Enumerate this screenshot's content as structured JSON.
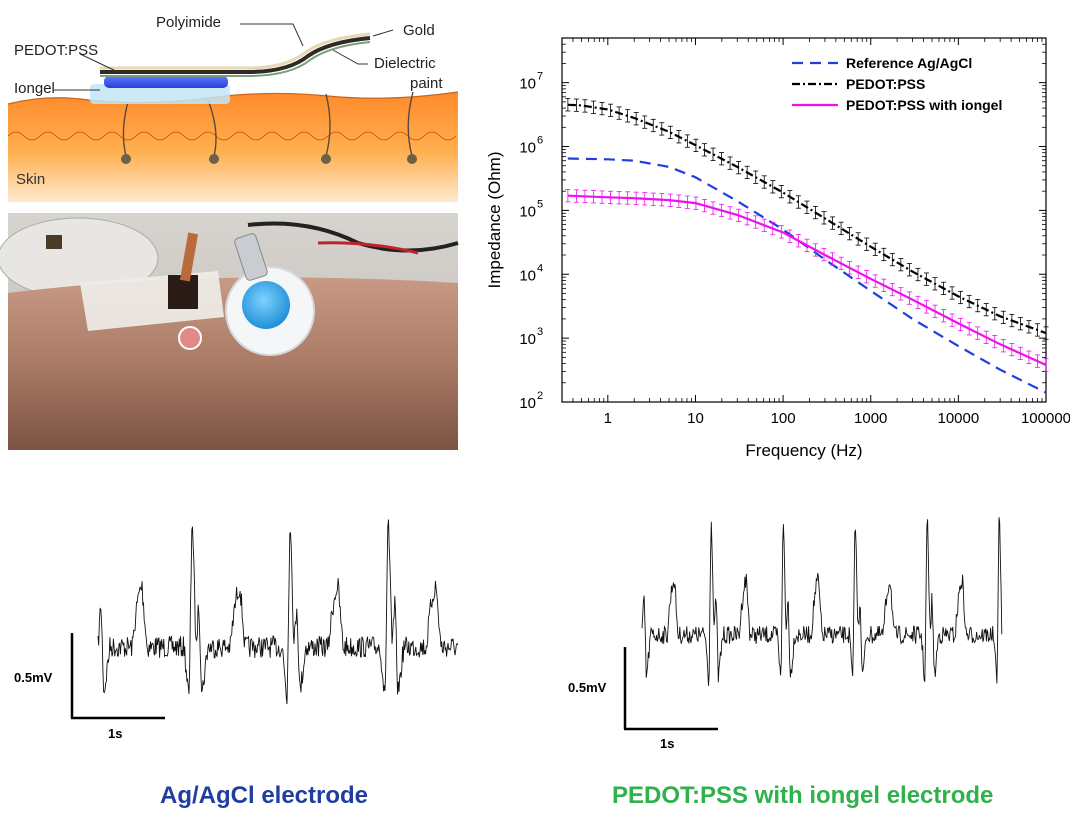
{
  "schematic": {
    "labels": {
      "polyimide": "Polyimide",
      "gold": "Gold",
      "pedot": "PEDOT:PSS",
      "dielectric_1": "Dielectric",
      "dielectric_2": "paint",
      "iongel": "Iongel",
      "skin": "Skin"
    }
  },
  "chart_data": {
    "type": "line",
    "xlabel": "Frequency (Hz)",
    "ylabel": "Impedance (Ohm)",
    "x_scale": "log",
    "y_scale": "log",
    "xlim": [
      0.3,
      100000
    ],
    "ylim": [
      100,
      50000000
    ],
    "x_ticks": [
      "1",
      "10",
      "100",
      "1000",
      "10000",
      "100000"
    ],
    "y_ticks": [
      {
        "base": "10",
        "exp": "2"
      },
      {
        "base": "10",
        "exp": "3"
      },
      {
        "base": "10",
        "exp": "4"
      },
      {
        "base": "10",
        "exp": "5"
      },
      {
        "base": "10",
        "exp": "6"
      },
      {
        "base": "10",
        "exp": "7"
      }
    ],
    "legend_position": "top-right",
    "series": [
      {
        "name": "Reference Ag/AgCl",
        "color": "#1f3fe0",
        "style": "dashed",
        "x": [
          0.35,
          1,
          2,
          5,
          10,
          30,
          100,
          300,
          1000,
          3000,
          10000,
          30000,
          100000
        ],
        "values": [
          650000,
          630000,
          600000,
          480000,
          330000,
          140000,
          50000,
          17000,
          5500,
          2000,
          750,
          320,
          140
        ]
      },
      {
        "name": "PEDOT:PSS",
        "color": "#000000",
        "style": "dashdot",
        "error_bars": true,
        "x": [
          0.35,
          0.5,
          1,
          2,
          5,
          10,
          30,
          100,
          300,
          1000,
          3000,
          10000,
          30000,
          100000
        ],
        "values": [
          4500000,
          4400000,
          3800000,
          2800000,
          1700000,
          1050000,
          480000,
          190000,
          75000,
          27000,
          11000,
          4500,
          2200,
          1200
        ]
      },
      {
        "name": "PEDOT:PSS with iongel",
        "color": "#ee10ee",
        "style": "solid",
        "error_bars": true,
        "x": [
          0.35,
          1,
          2,
          5,
          10,
          30,
          100,
          300,
          1000,
          3000,
          10000,
          30000,
          100000
        ],
        "values": [
          170000,
          160000,
          155000,
          145000,
          130000,
          85000,
          45000,
          20000,
          8500,
          4000,
          1700,
          800,
          380
        ]
      }
    ]
  },
  "ecg": {
    "left": {
      "scale_v": "0.5mV",
      "scale_t": "1s",
      "caption": "Ag/AgCl electrode"
    },
    "right": {
      "scale_v": "0.5mV",
      "scale_t": "1s",
      "caption": "PEDOT:PSS with iongel electrode"
    }
  },
  "colors": {
    "caption_left": "#1f3ea0",
    "caption_right": "#2fb24c"
  }
}
